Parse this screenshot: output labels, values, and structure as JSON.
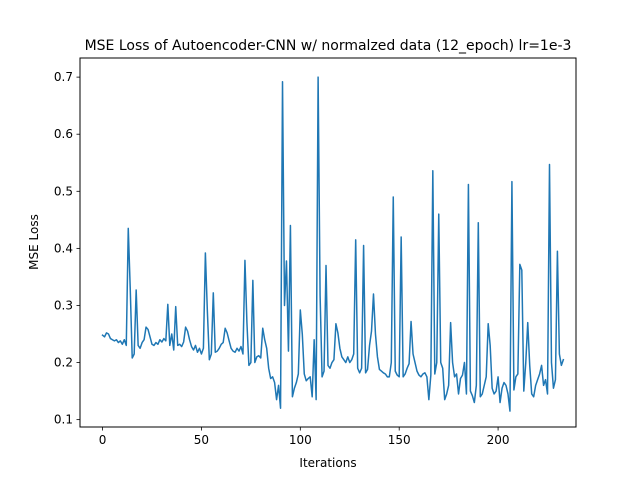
{
  "chart_data": {
    "type": "line",
    "title": "MSE Loss of Autoencoder-CNN w/ normalzed data (12_epoch) lr=1e-3",
    "xlabel": "Iterations",
    "ylabel": "MSE Loss",
    "xlim": [
      -11.4,
      239.4
    ],
    "ylim": [
      0.0871,
      0.7335
    ],
    "xticks": [
      0,
      50,
      100,
      150,
      200
    ],
    "xtick_labels": [
      "0",
      "50",
      "100",
      "150",
      "200"
    ],
    "yticks": [
      0.1,
      0.2,
      0.3,
      0.4,
      0.5,
      0.6,
      0.7
    ],
    "ytick_labels": [
      "0.1",
      "0.2",
      "0.3",
      "0.4",
      "0.5",
      "0.6",
      "0.7"
    ],
    "grid": false,
    "legend": null,
    "series": [
      {
        "name": "MSE Loss",
        "color": "#1f77b4",
        "values": [
          0.248,
          0.245,
          0.252,
          0.25,
          0.242,
          0.24,
          0.238,
          0.24,
          0.235,
          0.238,
          0.232,
          0.24,
          0.23,
          0.435,
          0.33,
          0.208,
          0.215,
          0.327,
          0.23,
          0.225,
          0.235,
          0.24,
          0.262,
          0.258,
          0.245,
          0.232,
          0.23,
          0.235,
          0.232,
          0.24,
          0.236,
          0.242,
          0.238,
          0.302,
          0.23,
          0.25,
          0.222,
          0.298,
          0.23,
          0.232,
          0.228,
          0.236,
          0.262,
          0.255,
          0.24,
          0.228,
          0.222,
          0.23,
          0.218,
          0.225,
          0.215,
          0.225,
          0.392,
          0.29,
          0.205,
          0.215,
          0.322,
          0.218,
          0.22,
          0.225,
          0.232,
          0.235,
          0.26,
          0.252,
          0.238,
          0.225,
          0.22,
          0.218,
          0.225,
          0.22,
          0.228,
          0.215,
          0.379,
          0.27,
          0.195,
          0.2,
          0.344,
          0.2,
          0.21,
          0.212,
          0.208,
          0.26,
          0.24,
          0.225,
          0.19,
          0.172,
          0.175,
          0.165,
          0.135,
          0.16,
          0.12,
          0.692,
          0.3,
          0.378,
          0.22,
          0.44,
          0.14,
          0.155,
          0.165,
          0.18,
          0.292,
          0.25,
          0.18,
          0.168,
          0.172,
          0.175,
          0.14,
          0.24,
          0.135,
          0.7,
          0.318,
          0.175,
          0.185,
          0.37,
          0.195,
          0.19,
          0.2,
          0.205,
          0.268,
          0.252,
          0.225,
          0.21,
          0.205,
          0.2,
          0.21,
          0.2,
          0.205,
          0.215,
          0.415,
          0.19,
          0.182,
          0.19,
          0.405,
          0.182,
          0.188,
          0.23,
          0.255,
          0.32,
          0.25,
          0.21,
          0.188,
          0.185,
          0.182,
          0.18,
          0.175,
          0.175,
          0.2,
          0.49,
          0.185,
          0.178,
          0.175,
          0.42,
          0.175,
          0.18,
          0.19,
          0.198,
          0.272,
          0.215,
          0.2,
          0.185,
          0.178,
          0.175,
          0.18,
          0.182,
          0.175,
          0.135,
          0.178,
          0.536,
          0.18,
          0.2,
          0.46,
          0.2,
          0.19,
          0.135,
          0.145,
          0.16,
          0.27,
          0.2,
          0.175,
          0.18,
          0.145,
          0.172,
          0.178,
          0.2,
          0.145,
          0.512,
          0.15,
          0.142,
          0.13,
          0.16,
          0.445,
          0.14,
          0.145,
          0.16,
          0.175,
          0.268,
          0.23,
          0.155,
          0.145,
          0.15,
          0.175,
          0.13,
          0.155,
          0.165,
          0.16,
          0.145,
          0.115,
          0.517,
          0.152,
          0.175,
          0.18,
          0.372,
          0.362,
          0.15,
          0.2,
          0.27,
          0.195,
          0.145,
          0.14,
          0.16,
          0.17,
          0.18,
          0.195,
          0.16,
          0.17,
          0.145,
          0.547,
          0.2,
          0.155,
          0.17,
          0.395,
          0.215,
          0.195,
          0.205
        ]
      }
    ]
  }
}
